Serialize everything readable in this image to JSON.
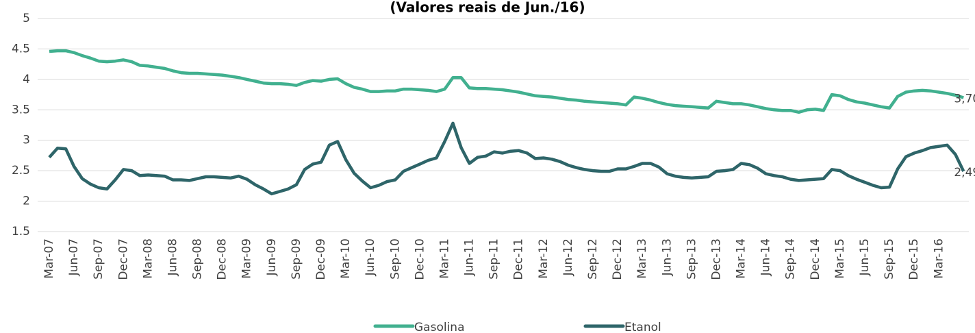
{
  "chart_data": {
    "type": "line",
    "title": "(Valores reais de Jun./16)",
    "categories": [
      "Mar-07",
      null,
      null,
      "Jun-07",
      null,
      null,
      "Sep-07",
      null,
      null,
      "Dec-07",
      null,
      null,
      "Mar-08",
      null,
      null,
      "Jun-08",
      null,
      null,
      "Sep-08",
      null,
      null,
      "Dec-08",
      null,
      null,
      "Mar-09",
      null,
      null,
      "Jun-09",
      null,
      null,
      "Sep-09",
      null,
      null,
      "Dec-09",
      null,
      null,
      "Mar-10",
      null,
      null,
      "Jun-10",
      null,
      null,
      "Sep-10",
      null,
      null,
      "Dec-10",
      null,
      null,
      "Mar-11",
      null,
      null,
      "Jun-11",
      null,
      null,
      "Sep-11",
      null,
      null,
      "Dec-11",
      null,
      null,
      "Mar-12",
      null,
      null,
      "Jun-12",
      null,
      null,
      "Sep-12",
      null,
      null,
      "Dec-12",
      null,
      null,
      "Mar-13",
      null,
      null,
      "Jun-13",
      null,
      null,
      "Sep-13",
      null,
      null,
      "Dec-13",
      null,
      null,
      "Mar-14",
      null,
      null,
      "Jun-14",
      null,
      null,
      "Sep-14",
      null,
      null,
      "Dec-14",
      null,
      null,
      "Mar-15",
      null,
      null,
      "Jun-15",
      null,
      null,
      "Sep-15",
      null,
      null,
      "Dec-15",
      null,
      null,
      "Mar-16",
      null,
      null,
      null
    ],
    "series": [
      {
        "name": "Gasolina",
        "color": "#41b08f",
        "values": [
          4.46,
          4.47,
          4.47,
          4.44,
          4.39,
          4.35,
          4.3,
          4.29,
          4.3,
          4.32,
          4.29,
          4.23,
          4.22,
          4.2,
          4.18,
          4.14,
          4.11,
          4.1,
          4.1,
          4.09,
          4.08,
          4.07,
          4.05,
          4.03,
          4.0,
          3.97,
          3.94,
          3.93,
          3.93,
          3.92,
          3.9,
          3.95,
          3.98,
          3.97,
          4.0,
          4.01,
          3.93,
          3.87,
          3.84,
          3.8,
          3.8,
          3.81,
          3.81,
          3.84,
          3.84,
          3.83,
          3.82,
          3.8,
          3.84,
          4.03,
          4.03,
          3.86,
          3.85,
          3.85,
          3.84,
          3.83,
          3.81,
          3.79,
          3.76,
          3.73,
          3.72,
          3.71,
          3.69,
          3.67,
          3.66,
          3.64,
          3.63,
          3.62,
          3.61,
          3.6,
          3.58,
          3.71,
          3.69,
          3.66,
          3.62,
          3.59,
          3.57,
          3.56,
          3.55,
          3.54,
          3.53,
          3.64,
          3.62,
          3.6,
          3.6,
          3.58,
          3.55,
          3.52,
          3.5,
          3.49,
          3.49,
          3.46,
          3.5,
          3.51,
          3.49,
          3.75,
          3.73,
          3.67,
          3.63,
          3.61,
          3.58,
          3.55,
          3.53,
          3.72,
          3.79,
          3.81,
          3.82,
          3.81,
          3.79,
          3.77,
          3.74,
          3.7
        ],
        "value_labels": [
          null,
          null,
          null,
          null,
          null,
          null,
          null,
          null,
          null,
          null,
          null,
          null,
          null,
          null,
          null,
          null,
          null,
          null,
          null,
          null,
          null,
          null,
          null,
          null,
          null,
          null,
          null,
          null,
          null,
          null,
          null,
          null,
          null,
          null,
          null,
          null,
          null,
          null,
          null,
          null,
          null,
          null,
          null,
          null,
          null,
          null,
          null,
          null,
          null,
          null,
          null,
          null,
          null,
          null,
          null,
          null,
          null,
          null,
          null,
          null,
          null,
          null,
          null,
          null,
          null,
          null,
          null,
          null,
          null,
          null,
          null,
          null,
          null,
          null,
          null,
          null,
          null,
          null,
          null,
          null,
          null,
          null,
          null,
          null,
          null,
          null,
          null,
          null,
          null,
          null,
          null,
          null,
          null,
          null,
          null,
          null,
          null,
          null,
          null,
          null,
          null,
          null,
          null,
          null,
          null,
          null,
          null,
          null,
          null,
          null,
          null,
          "3,70"
        ]
      },
      {
        "name": "Etanol",
        "color": "#2e6569",
        "values": [
          2.72,
          2.87,
          2.86,
          2.57,
          2.37,
          2.28,
          2.22,
          2.2,
          2.35,
          2.52,
          2.5,
          2.42,
          2.43,
          2.42,
          2.41,
          2.35,
          2.35,
          2.34,
          2.37,
          2.4,
          2.4,
          2.39,
          2.38,
          2.41,
          2.36,
          2.27,
          2.2,
          2.12,
          2.16,
          2.2,
          2.27,
          2.52,
          2.61,
          2.64,
          2.92,
          2.98,
          2.68,
          2.46,
          2.33,
          2.22,
          2.26,
          2.32,
          2.35,
          2.49,
          2.55,
          2.61,
          2.67,
          2.71,
          2.98,
          3.28,
          2.88,
          2.62,
          2.72,
          2.74,
          2.81,
          2.79,
          2.82,
          2.83,
          2.79,
          2.7,
          2.71,
          2.69,
          2.65,
          2.59,
          2.55,
          2.52,
          2.5,
          2.49,
          2.49,
          2.53,
          2.53,
          2.57,
          2.62,
          2.62,
          2.56,
          2.45,
          2.41,
          2.39,
          2.38,
          2.39,
          2.4,
          2.49,
          2.5,
          2.52,
          2.62,
          2.6,
          2.54,
          2.45,
          2.42,
          2.4,
          2.36,
          2.34,
          2.35,
          2.36,
          2.37,
          2.52,
          2.5,
          2.42,
          2.36,
          2.31,
          2.26,
          2.22,
          2.23,
          2.53,
          2.73,
          2.79,
          2.83,
          2.88,
          2.9,
          2.92,
          2.77,
          2.49
        ],
        "value_labels": [
          null,
          null,
          null,
          null,
          null,
          null,
          null,
          null,
          null,
          null,
          null,
          null,
          null,
          null,
          null,
          null,
          null,
          null,
          null,
          null,
          null,
          null,
          null,
          null,
          null,
          null,
          null,
          null,
          null,
          null,
          null,
          null,
          null,
          null,
          null,
          null,
          null,
          null,
          null,
          null,
          null,
          null,
          null,
          null,
          null,
          null,
          null,
          null,
          null,
          null,
          null,
          null,
          null,
          null,
          null,
          null,
          null,
          null,
          null,
          null,
          null,
          null,
          null,
          null,
          null,
          null,
          null,
          null,
          null,
          null,
          null,
          null,
          null,
          null,
          null,
          null,
          null,
          null,
          null,
          null,
          null,
          null,
          null,
          null,
          null,
          null,
          null,
          null,
          null,
          null,
          null,
          null,
          null,
          null,
          null,
          null,
          null,
          null,
          null,
          null,
          null,
          null,
          null,
          null,
          null,
          null,
          null,
          null,
          null,
          null,
          null,
          "2,49"
        ]
      }
    ],
    "ylim": [
      1.5,
      5
    ],
    "yticks": [
      1.5,
      2,
      2.5,
      3,
      3.5,
      4,
      4.5,
      5
    ],
    "grid": true
  }
}
